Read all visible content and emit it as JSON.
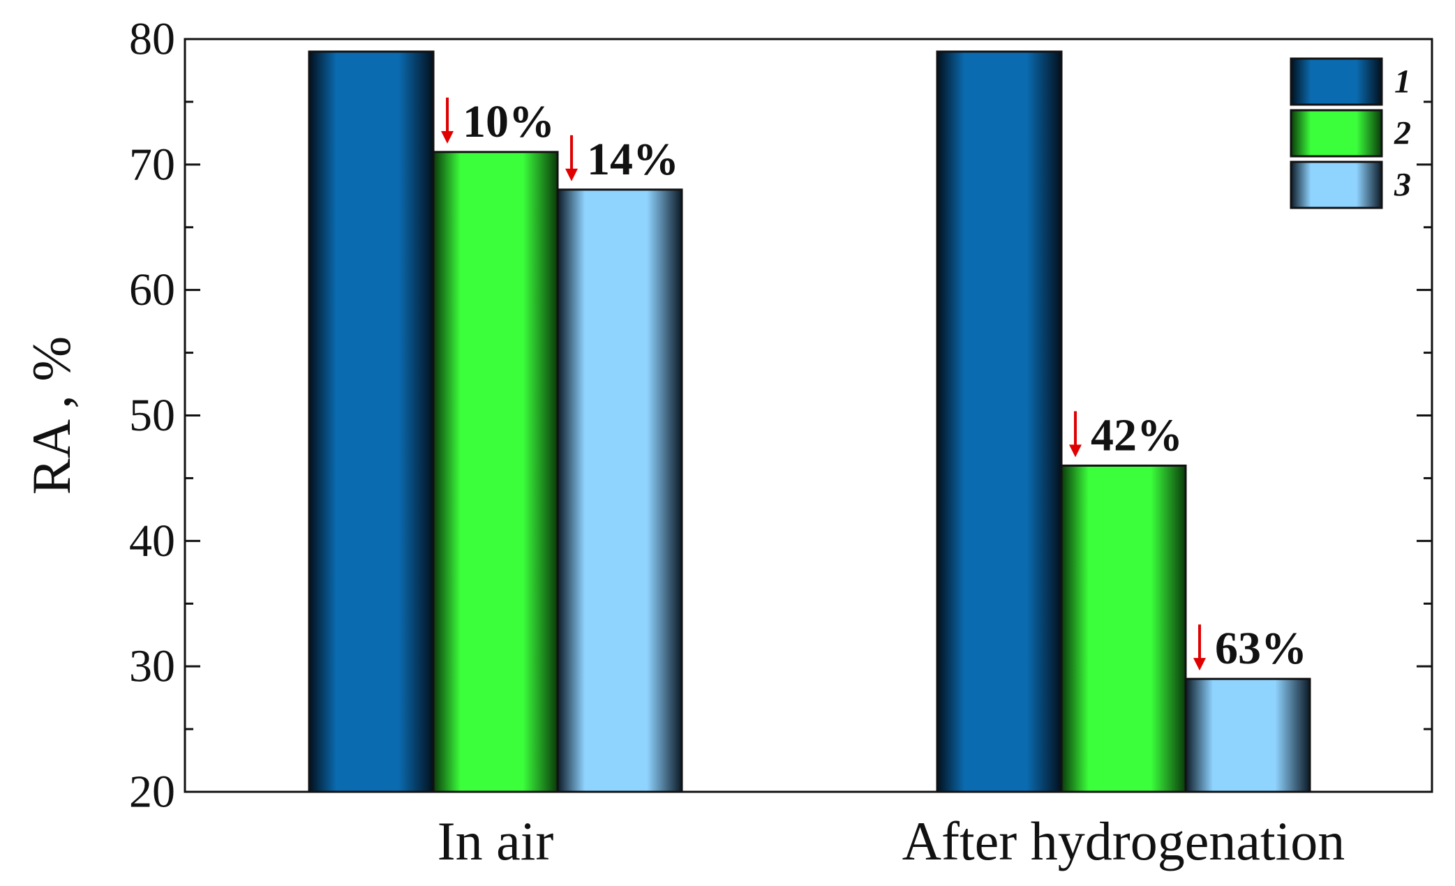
{
  "chart_data": {
    "type": "bar",
    "categories": [
      "In air",
      "After hydrogenation"
    ],
    "series": [
      {
        "name": "1",
        "values": [
          79,
          79
        ]
      },
      {
        "name": "2",
        "values": [
          71,
          46
        ]
      },
      {
        "name": "3",
        "values": [
          68,
          29
        ]
      }
    ],
    "title": "",
    "xlabel": "",
    "ylabel": "RA , %",
    "ylim": [
      20,
      80
    ],
    "yticks": [
      "20",
      "30",
      "40",
      "50",
      "60",
      "70",
      "80"
    ],
    "grid": false,
    "legend_position": "top-right",
    "colors": {
      "1": {
        "light": "#0b6bb0",
        "dark": "#02101d"
      },
      "2": {
        "light": "#3cff3c",
        "dark": "#0a3a0a"
      },
      "3": {
        "light": "#8fd3ff",
        "dark": "#0c1a26"
      },
      "arrow": "#e00000"
    },
    "annotations": [
      {
        "category": "In air",
        "series": "2",
        "text": "10%"
      },
      {
        "category": "In air",
        "series": "3",
        "text": "14%"
      },
      {
        "category": "After hydrogenation",
        "series": "2",
        "text": "42%"
      },
      {
        "category": "After hydrogenation",
        "series": "3",
        "text": "63%"
      }
    ]
  }
}
